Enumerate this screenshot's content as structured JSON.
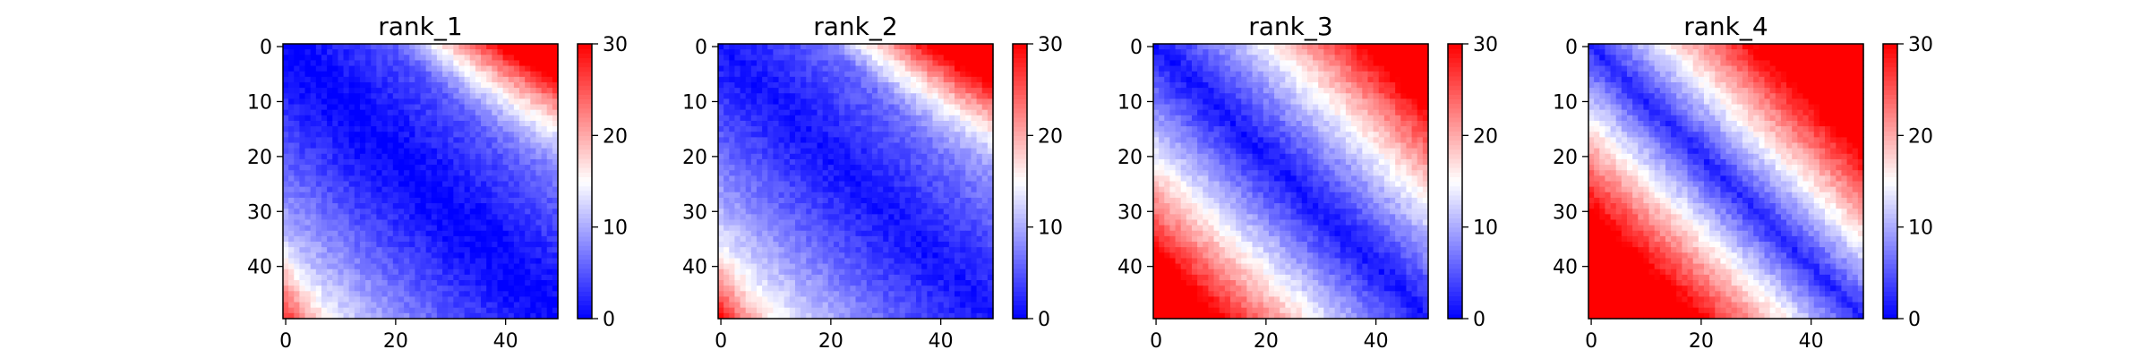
{
  "chart_data": [
    {
      "type": "heatmap",
      "title": "rank_1",
      "xlabel": "",
      "ylabel": "",
      "size": 50,
      "x_ticks": [
        0,
        20,
        40
      ],
      "y_ticks": [
        0,
        10,
        20,
        30,
        40
      ],
      "colorbar": {
        "cmap": "bwr",
        "vmin": 0,
        "vmax": 30,
        "ticks": [
          0,
          10,
          20,
          30
        ]
      },
      "pattern": {
        "diag": 0,
        "slope": 0.18,
        "curve": 0.004,
        "offset": 0,
        "edge_row": 0.0,
        "edge_col": 0.0
      }
    },
    {
      "type": "heatmap",
      "title": "rank_2",
      "xlabel": "",
      "ylabel": "",
      "size": 50,
      "x_ticks": [
        0,
        20,
        40
      ],
      "y_ticks": [
        0,
        10,
        20,
        30,
        40
      ],
      "colorbar": {
        "cmap": "bwr",
        "vmin": 0,
        "vmax": 30,
        "ticks": [
          0,
          10,
          20,
          30
        ]
      },
      "pattern": {
        "diag": 1,
        "slope": 0.2,
        "curve": 0.004,
        "offset": 0,
        "edge_row": 0.0,
        "edge_col": 0.0
      }
    },
    {
      "type": "heatmap",
      "title": "rank_3",
      "xlabel": "",
      "ylabel": "",
      "size": 50,
      "x_ticks": [
        0,
        20,
        40
      ],
      "y_ticks": [
        0,
        10,
        20,
        30,
        40
      ],
      "colorbar": {
        "cmap": "bwr",
        "vmin": 0,
        "vmax": 30,
        "ticks": [
          0,
          10,
          20,
          30
        ]
      },
      "pattern": {
        "diag": 1,
        "slope": 0.55,
        "curve": 0.006,
        "offset": 0,
        "edge_row": 0.0,
        "edge_col": 0.0
      }
    },
    {
      "type": "heatmap",
      "title": "rank_4",
      "xlabel": "",
      "ylabel": "",
      "size": 50,
      "x_ticks": [
        0,
        20,
        40
      ],
      "y_ticks": [
        0,
        10,
        20,
        30,
        40
      ],
      "colorbar": {
        "cmap": "bwr",
        "vmin": 0,
        "vmax": 30,
        "ticks": [
          0,
          10,
          20,
          30
        ]
      },
      "pattern": {
        "diag": 2,
        "slope": 0.95,
        "curve": 0.0,
        "offset": 0,
        "edge_row": 0.0,
        "edge_col": 0.0
      }
    }
  ]
}
